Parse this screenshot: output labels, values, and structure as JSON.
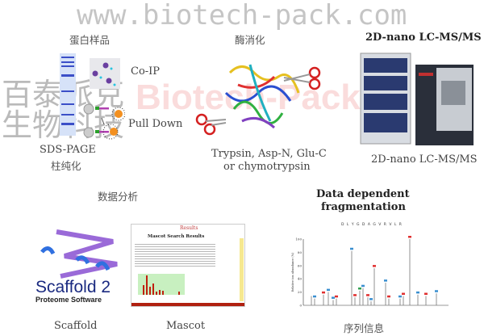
{
  "sample": {
    "title": "蛋白样品",
    "coip": "Co-IP",
    "pulldown": "Pull Down",
    "sds": "SDS-PAGE",
    "column": "柱纯化"
  },
  "digestion": {
    "title": "酶消化",
    "enzymes_line1": "Trypsin, Asp-N, Glu-C",
    "enzymes_line2": "or chymotrypsin"
  },
  "lcms": {
    "title": "2D-nano LC-MS/MS",
    "label": "2D-nano LC-MS/MS"
  },
  "analysis": {
    "title": "数据分析",
    "scaffold_logo_main": "Scaffold 2",
    "scaffold_logo_sub": "Proteome Software",
    "scaffold_label": "Scaffold",
    "mascot_header": "Results",
    "mascot_title": "Mascot Search Results",
    "mascot_label": "Mascot"
  },
  "fragmentation": {
    "title_line1": "Data dependent",
    "title_line2": "fragmentation",
    "label": "序列信息",
    "peptide": "D L Y G D A G V R V L R",
    "y_ticks": [
      "0",
      "20",
      "40",
      "60",
      "80",
      "100"
    ],
    "y_axis_label": "Relative ion abundance (%)"
  },
  "watermark": {
    "company_cn": "百泰派克生物科技",
    "brand": "Biotech-Pack",
    "url": "www.biotech-pack.com"
  },
  "colors": {
    "brand_red": "#e23030",
    "watermark_gray": "#9a9a9a",
    "ion_b": "#3a8fd0",
    "ion_y": "#e03030"
  }
}
